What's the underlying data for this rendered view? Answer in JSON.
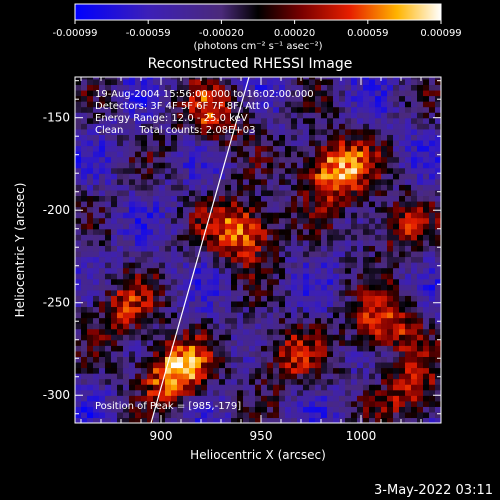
{
  "chart_data": {
    "type": "heatmap",
    "title": "Reconstructed RHESSI Image",
    "xlabel": "Heliocentric X (arcsec)",
    "ylabel": "Heliocentric Y (arcsec)",
    "xlim": [
      857,
      1040
    ],
    "ylim": [
      -315,
      -128
    ],
    "x_ticks": [
      900,
      950,
      1000
    ],
    "y_ticks": [
      -150,
      -200,
      -250,
      -300
    ],
    "colorbar": {
      "label": "(photons cm⁻² s⁻¹ asec⁻²)",
      "range": [
        -0.00099,
        0.00099
      ],
      "ticks": [
        "-0.00099",
        "-0.00059",
        "-0.00020",
        "0.00020",
        "0.00059",
        "0.00099"
      ]
    },
    "annotations": [
      "19-Aug-2004 15:56:00.000 to 16:02:00.000",
      "Detectors: 3F 4F 5F 6F 7F 8F, Att 0",
      "Energy Range: 12.0 - 25.0 keV",
      "Clean     Total counts: 2.08E+03"
    ],
    "peak_label": "Position of Peak = [985,-179]",
    "peaks": [
      {
        "x": 985,
        "y": -179,
        "value": 1.0
      },
      {
        "x": 940,
        "y": -212,
        "value": 0.9
      },
      {
        "x": 905,
        "y": -288,
        "value": 0.95
      },
      {
        "x": 1010,
        "y": -263,
        "value": 0.75
      },
      {
        "x": 925,
        "y": -150,
        "value": 0.6
      },
      {
        "x": 1025,
        "y": -300,
        "value": 0.6
      },
      {
        "x": 880,
        "y": -255,
        "value": 0.55
      },
      {
        "x": 960,
        "y": -280,
        "value": 0.55
      },
      {
        "x": 1015,
        "y": -210,
        "value": 0.5
      }
    ],
    "limb_line": {
      "x1": 895,
      "y1": -315,
      "x2": 944,
      "y2": -128
    }
  },
  "footer_date": "3-May-2022 03:11"
}
